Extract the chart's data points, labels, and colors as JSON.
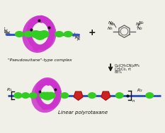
{
  "title_top": "\"Pseudosuitane\"-type complex",
  "title_bottom": "Linear polyrotaxane",
  "reaction_line1": "Cu(CH₃CN)₄PF₆",
  "reaction_line2": "CH₂Cl₂, rt",
  "reaction_line3": "83%",
  "magenta": "#CC33CC",
  "green": "#33CC22",
  "blue": "#3355CC",
  "red": "#CC2222",
  "black": "#111111",
  "darkgray": "#666666",
  "lightgray": "#AAAAAA",
  "bg": "#F0EFE8",
  "label_r1": "R",
  "label_r2": "R",
  "label_n": "n",
  "sub1": "1",
  "sub2": "2"
}
